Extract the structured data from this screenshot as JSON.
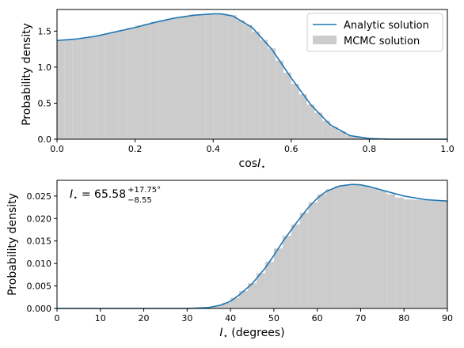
{
  "figure": {
    "background": "#ffffff",
    "bar_color": "#cccccc",
    "line_color": "#1f77b4"
  },
  "legend": {
    "analytic": "Analytic solution",
    "mcmc": "MCMC solution",
    "placement": "top-right"
  },
  "chart_data": [
    {
      "type": "area",
      "xlabel_main": "cos",
      "xlabel_var": "I",
      "xlabel_sub": "⋆",
      "ylabel": "Probability density",
      "xlim": [
        0.0,
        1.0
      ],
      "ylim": [
        0.0,
        1.8
      ],
      "grid": false,
      "x_ticks": [
        "0.0",
        "0.2",
        "0.4",
        "0.6",
        "0.8",
        "1.0"
      ],
      "x_tick_values": [
        0.0,
        0.2,
        0.4,
        0.6,
        0.8,
        1.0
      ],
      "y_ticks": [
        "0.0",
        "0.5",
        "1.0",
        "1.5"
      ],
      "y_tick_values": [
        0.0,
        0.5,
        1.0,
        1.5
      ],
      "series": [
        {
          "name": "Analytic solution",
          "type": "line",
          "x": [
            0.0,
            0.05,
            0.1,
            0.15,
            0.2,
            0.25,
            0.3,
            0.35,
            0.4,
            0.42,
            0.45,
            0.5,
            0.55,
            0.6,
            0.65,
            0.7,
            0.75,
            0.8,
            0.85,
            0.9,
            1.0
          ],
          "y": [
            1.37,
            1.39,
            1.43,
            1.49,
            1.55,
            1.62,
            1.68,
            1.72,
            1.74,
            1.74,
            1.71,
            1.55,
            1.25,
            0.85,
            0.48,
            0.2,
            0.05,
            0.01,
            0.0,
            0.0,
            0.0
          ]
        },
        {
          "name": "MCMC solution",
          "type": "histogram",
          "x": [
            0.0,
            0.05,
            0.1,
            0.15,
            0.2,
            0.25,
            0.3,
            0.35,
            0.4,
            0.42,
            0.45,
            0.5,
            0.55,
            0.6,
            0.65,
            0.7,
            0.75,
            0.8,
            0.85,
            0.9,
            1.0
          ],
          "y": [
            1.37,
            1.38,
            1.43,
            1.49,
            1.56,
            1.63,
            1.68,
            1.73,
            1.74,
            1.74,
            1.72,
            1.55,
            1.26,
            0.84,
            0.48,
            0.2,
            0.05,
            0.01,
            0.0,
            0.0,
            0.0
          ]
        }
      ]
    },
    {
      "type": "area",
      "xlabel_var": "I",
      "xlabel_sub": "⋆",
      "xlabel_rest": " (degrees)",
      "ylabel": "Probability density",
      "xlim": [
        0,
        90
      ],
      "ylim": [
        0.0,
        0.0285
      ],
      "grid": false,
      "x_ticks": [
        "0",
        "10",
        "20",
        "30",
        "40",
        "50",
        "60",
        "70",
        "80",
        "90"
      ],
      "x_tick_values": [
        0,
        10,
        20,
        30,
        40,
        50,
        60,
        70,
        80,
        90
      ],
      "y_ticks": [
        "0.000",
        "0.005",
        "0.010",
        "0.015",
        "0.020",
        "0.025"
      ],
      "y_tick_values": [
        0.0,
        0.005,
        0.01,
        0.015,
        0.02,
        0.025
      ],
      "annotation": {
        "var": "I",
        "sub": "⋆",
        "eq": " = 65.58",
        "sup": "+17.75°",
        "low": "−8.55"
      },
      "series": [
        {
          "name": "Analytic solution",
          "type": "line",
          "x": [
            0,
            30,
            35,
            38,
            40,
            42,
            45,
            48,
            50,
            52,
            55,
            58,
            60,
            62,
            65,
            68,
            70,
            72,
            75,
            80,
            85,
            90
          ],
          "y": [
            0.0,
            0.0,
            0.0002,
            0.0008,
            0.0016,
            0.003,
            0.0055,
            0.009,
            0.0118,
            0.0148,
            0.0188,
            0.0225,
            0.0245,
            0.026,
            0.0272,
            0.0276,
            0.0275,
            0.0271,
            0.0263,
            0.025,
            0.0242,
            0.0239
          ]
        },
        {
          "name": "MCMC solution",
          "type": "histogram",
          "x": [
            0,
            30,
            35,
            38,
            40,
            42,
            45,
            48,
            50,
            52,
            55,
            58,
            60,
            62,
            65,
            68,
            70,
            72,
            75,
            80,
            85,
            90
          ],
          "y": [
            0.0,
            0.0,
            0.0002,
            0.0008,
            0.0017,
            0.003,
            0.0056,
            0.009,
            0.0118,
            0.0149,
            0.0187,
            0.0226,
            0.0246,
            0.0262,
            0.0272,
            0.0277,
            0.0275,
            0.0272,
            0.0262,
            0.0243,
            0.0241,
            0.0239
          ]
        }
      ]
    }
  ]
}
